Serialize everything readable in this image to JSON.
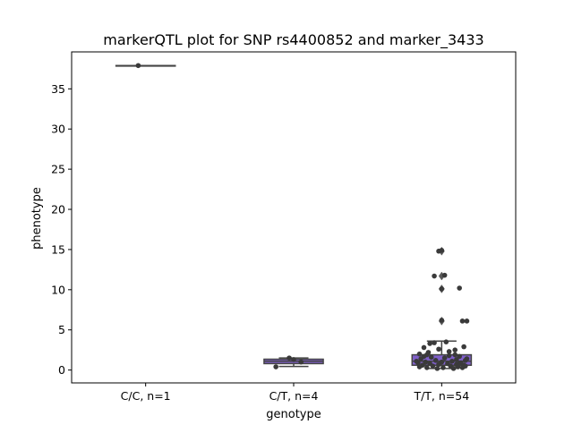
{
  "chart_data": {
    "type": "box",
    "title": "markerQTL plot for SNP rs4400852 and marker_3433",
    "xlabel": "genotype",
    "ylabel": "phenotype",
    "ylim": [
      -1.6,
      39.6
    ],
    "yticks": [
      0,
      5,
      10,
      15,
      20,
      25,
      30,
      35
    ],
    "categories": [
      "C/C, n=1",
      "C/T, n=4",
      "T/T, n=54"
    ],
    "box_color": "#7f5fc9",
    "line_color": "#444444",
    "point_color": "#3a3a3a",
    "groups": [
      {
        "category": "C/C, n=1",
        "q1": 37.9,
        "median": 37.9,
        "q3": 37.9,
        "whisker_low": 37.9,
        "whisker_high": 37.9,
        "outliers": [],
        "points": [
          [
            -0.05,
            37.9
          ]
        ]
      },
      {
        "category": "C/T, n=4",
        "q1": 0.8,
        "median": 1.1,
        "q3": 1.35,
        "whisker_low": 0.45,
        "whisker_high": 1.5,
        "outliers": [],
        "points": [
          [
            -0.12,
            0.4
          ],
          [
            0.0,
            1.3
          ],
          [
            0.05,
            1.0
          ],
          [
            -0.03,
            1.5
          ]
        ]
      },
      {
        "category": "T/T, n=54",
        "q1": 0.6,
        "median": 1.1,
        "q3": 1.9,
        "whisker_low": 0.2,
        "whisker_high": 3.6,
        "outliers": [
          14.8,
          11.7,
          10.1,
          6.1
        ],
        "points": [
          [
            -0.02,
            14.8
          ],
          [
            0.0,
            14.9
          ],
          [
            -0.05,
            11.7
          ],
          [
            0.02,
            11.8
          ],
          [
            0.0,
            10.1
          ],
          [
            0.12,
            10.2
          ],
          [
            0.0,
            6.2
          ],
          [
            0.14,
            6.1
          ],
          [
            0.17,
            6.1
          ],
          [
            -0.05,
            3.4
          ],
          [
            -0.08,
            3.3
          ],
          [
            0.03,
            3.5
          ],
          [
            -0.12,
            2.8
          ],
          [
            0.15,
            2.9
          ],
          [
            0.09,
            2.5
          ],
          [
            -0.02,
            2.6
          ],
          [
            -0.15,
            2.0
          ],
          [
            -0.1,
            1.9
          ],
          [
            0.05,
            1.8
          ],
          [
            0.12,
            1.7
          ],
          [
            -0.07,
            1.6
          ],
          [
            0.02,
            1.5
          ],
          [
            -0.14,
            1.4
          ],
          [
            0.1,
            1.3
          ],
          [
            0.16,
            1.2
          ],
          [
            -0.04,
            1.2
          ],
          [
            0.07,
            1.1
          ],
          [
            -0.11,
            1.0
          ],
          [
            0.0,
            1.0
          ],
          [
            0.13,
            0.9
          ],
          [
            -0.16,
            0.9
          ],
          [
            0.04,
            0.8
          ],
          [
            -0.08,
            0.8
          ],
          [
            0.1,
            0.7
          ],
          [
            -0.02,
            0.7
          ],
          [
            0.15,
            0.6
          ],
          [
            -0.13,
            0.6
          ],
          [
            0.06,
            0.5
          ],
          [
            -0.06,
            0.5
          ],
          [
            0.11,
            0.4
          ],
          [
            -0.15,
            0.4
          ],
          [
            0.01,
            0.3
          ],
          [
            0.14,
            0.3
          ],
          [
            -0.1,
            0.3
          ],
          [
            0.08,
            0.2
          ],
          [
            -0.03,
            0.2
          ],
          [
            0.16,
            0.5
          ],
          [
            -0.17,
            1.1
          ],
          [
            0.17,
            1.4
          ],
          [
            -0.09,
            2.2
          ],
          [
            0.05,
            2.3
          ],
          [
            0.12,
            0.8
          ],
          [
            -0.12,
            1.7
          ],
          [
            0.09,
            1.9
          ]
        ]
      }
    ]
  }
}
